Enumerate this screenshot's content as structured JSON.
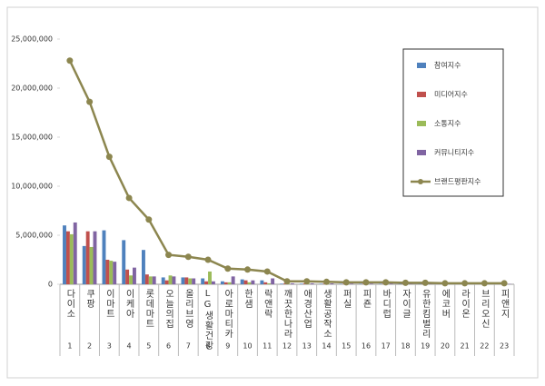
{
  "chart_data": {
    "type": "bar",
    "categories": [
      "다이소",
      "쿠팡",
      "이마트",
      "이케아",
      "롯데마트",
      "오늘의집",
      "올리브영",
      "LG생활건강",
      "아로마티카",
      "한샘",
      "락앤락",
      "깨끗한나라",
      "애경산업",
      "생활공작소",
      "퍼실",
      "피죤",
      "바디럽",
      "자이글",
      "유한킴벌리",
      "에코버",
      "라이온",
      "브리오신",
      "피앤지"
    ],
    "ranks": [
      1,
      2,
      3,
      4,
      5,
      6,
      7,
      8,
      9,
      10,
      11,
      12,
      13,
      14,
      15,
      16,
      17,
      18,
      19,
      20,
      21,
      22,
      23
    ],
    "series": [
      {
        "name": "참여지수",
        "type": "bar",
        "color": "#4f81bd",
        "values": [
          6000000,
          3900000,
          5500000,
          4500000,
          3500000,
          700000,
          700000,
          600000,
          300000,
          500000,
          400000,
          60000,
          60000,
          50000,
          40000,
          40000,
          40000,
          30000,
          30000,
          20000,
          20000,
          20000,
          20000
        ]
      },
      {
        "name": "미디어지수",
        "type": "bar",
        "color": "#c0504d",
        "values": [
          5400000,
          5400000,
          2500000,
          1500000,
          1000000,
          400000,
          700000,
          300000,
          200000,
          400000,
          200000,
          80000,
          80000,
          60000,
          50000,
          50000,
          40000,
          40000,
          40000,
          30000,
          30000,
          30000,
          30000
        ]
      },
      {
        "name": "소통지수",
        "type": "bar",
        "color": "#9bbb59",
        "values": [
          5100000,
          3800000,
          2400000,
          900000,
          800000,
          900000,
          600000,
          1300000,
          200000,
          200000,
          100000,
          60000,
          60000,
          50000,
          40000,
          40000,
          40000,
          30000,
          30000,
          20000,
          20000,
          20000,
          20000
        ]
      },
      {
        "name": "커뮤니티지수",
        "type": "bar",
        "color": "#8064a2",
        "values": [
          6300000,
          5400000,
          2300000,
          1700000,
          800000,
          800000,
          600000,
          300000,
          800000,
          400000,
          600000,
          100000,
          100000,
          90000,
          70000,
          70000,
          80000,
          50000,
          50000,
          30000,
          30000,
          30000,
          30000
        ]
      },
      {
        "name": "브랜드평판지수",
        "type": "line",
        "color": "#8c864f",
        "values": [
          22800000,
          18600000,
          13000000,
          8800000,
          6600000,
          3000000,
          2800000,
          2500000,
          1600000,
          1500000,
          1300000,
          300000,
          300000,
          250000,
          200000,
          200000,
          200000,
          150000,
          150000,
          100000,
          100000,
          100000,
          100000
        ]
      }
    ],
    "ylim": [
      0,
      25000000
    ],
    "yticks": [
      0,
      {
        "value": 5000000,
        "label": "5,000,000"
      },
      {
        "value": 10000000,
        "label": "10,000,000"
      },
      {
        "value": 15000000,
        "label": "15,000,000"
      },
      {
        "value": 20000000,
        "label": "20,000,000"
      },
      {
        "value": 25000000,
        "label": "25,000,000"
      }
    ],
    "grid": false
  }
}
